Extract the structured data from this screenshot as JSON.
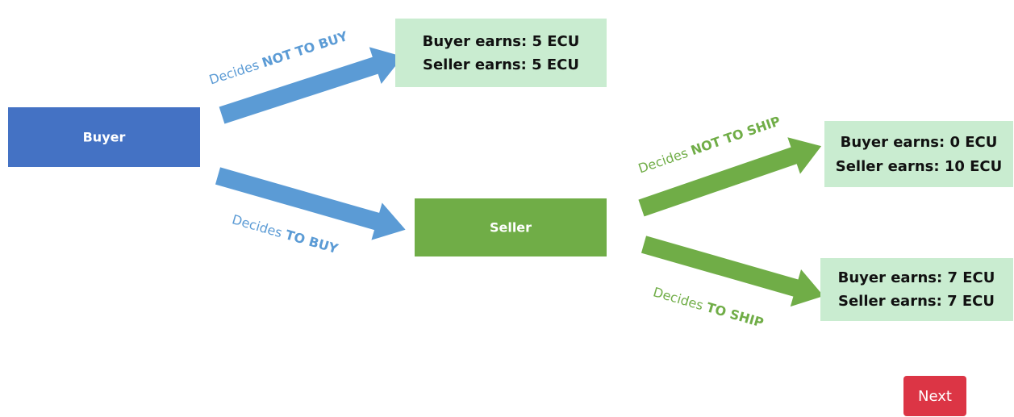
{
  "nodes": [
    {
      "label": "Buyer"
    },
    {
      "label": "Seller"
    }
  ],
  "edges": [
    {
      "prefix": "Decides",
      "action": "NOT TO BUY"
    },
    {
      "prefix": "Decides",
      "action": "TO BUY"
    },
    {
      "prefix": "Decides",
      "action": "NOT TO SHIP"
    },
    {
      "prefix": "Decides",
      "action": "TO SHIP"
    }
  ],
  "outcomes": [
    {
      "lines": [
        "Buyer earns: 5 ECU",
        "Seller earns: 5 ECU"
      ]
    },
    {
      "lines": [
        "Buyer earns: 0 ECU",
        "Seller earns: 10 ECU"
      ]
    },
    {
      "lines": [
        "Buyer earns: 7 ECU",
        "Seller earns: 7 ECU"
      ]
    }
  ],
  "button": {
    "label": "Next"
  }
}
